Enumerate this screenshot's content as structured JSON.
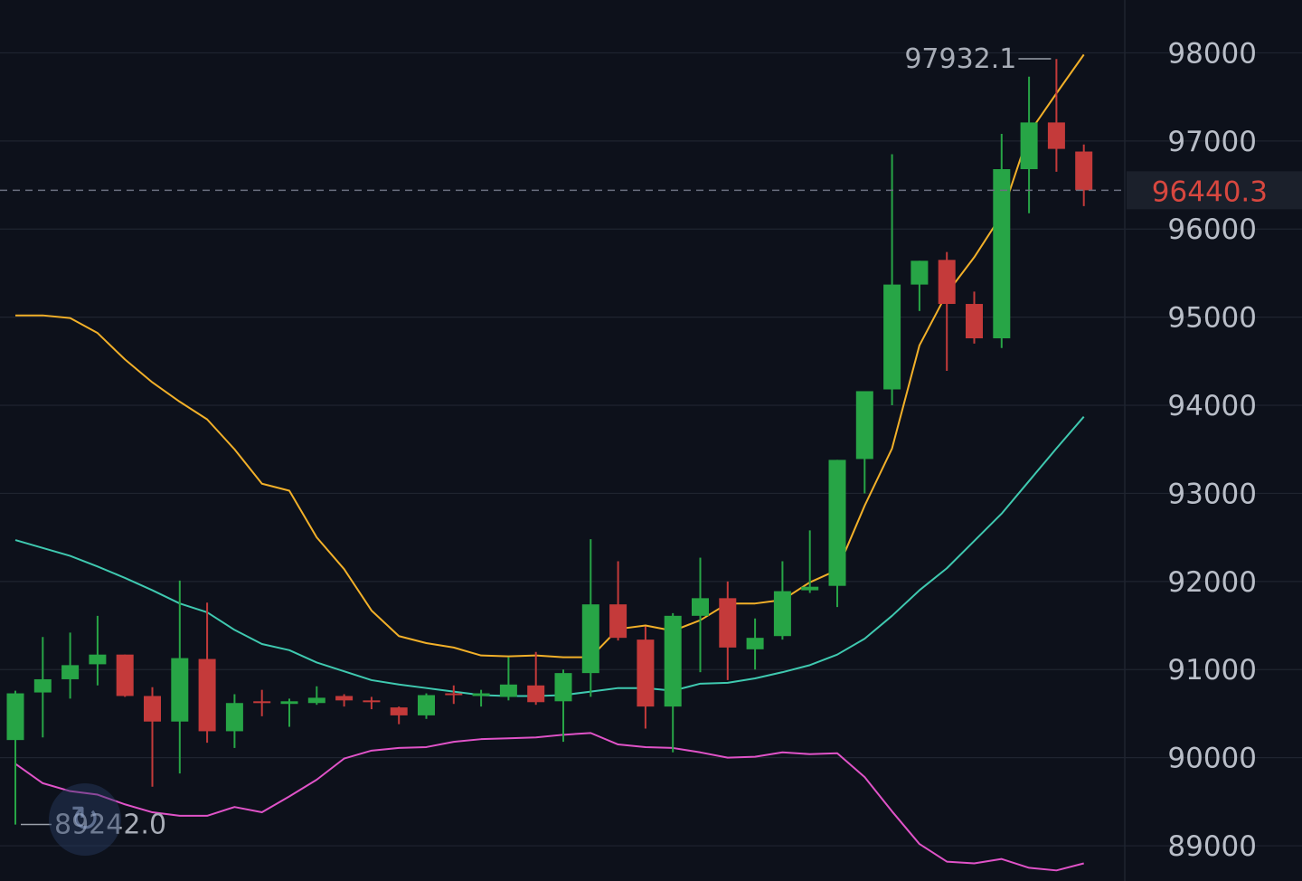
{
  "colors": {
    "background": "#0d111b",
    "grid": "#1f2430",
    "up": "#27a546",
    "down": "#c43a3a",
    "ma_short": "#f2b029",
    "ma_mid": "#3fc9b0",
    "ma_low": "#e053c8",
    "current_price": "#d8473f",
    "axis_text": "#b9bec8"
  },
  "icons": {
    "scroll_back": "rotate-arrow-icon"
  },
  "chart_data": {
    "type": "candlestick",
    "y_ticks": [
      89000,
      90000,
      91000,
      92000,
      93000,
      94000,
      95000,
      96000,
      97000,
      98000
    ],
    "y_tick_labels": [
      "89000",
      "90000",
      "91000",
      "92000",
      "93000",
      "94000",
      "95000",
      "96000",
      "97000",
      "98000"
    ],
    "ylim": [
      88600,
      98600
    ],
    "grid": true,
    "current_price": 96440.3,
    "current_price_label": "96440.3",
    "high_label": "97932.1",
    "high_value": 97932.1,
    "low_label": "89242.0",
    "low_value": 89242.0,
    "candles": [
      {
        "o": 90200,
        "c": 90730,
        "h": 90760,
        "l": 89240
      },
      {
        "o": 90740,
        "c": 90890,
        "h": 91370,
        "l": 90230
      },
      {
        "o": 90890,
        "c": 91050,
        "h": 91420,
        "l": 90670
      },
      {
        "o": 91060,
        "c": 91170,
        "h": 91610,
        "l": 90820
      },
      {
        "o": 91170,
        "c": 90700,
        "h": 91170,
        "l": 90690
      },
      {
        "o": 90700,
        "c": 90410,
        "h": 90800,
        "l": 89670
      },
      {
        "o": 90410,
        "c": 91130,
        "h": 92010,
        "l": 89820
      },
      {
        "o": 91120,
        "c": 90300,
        "h": 91760,
        "l": 90170
      },
      {
        "o": 90300,
        "c": 90620,
        "h": 90720,
        "l": 90110
      },
      {
        "o": 90640,
        "c": 90620,
        "h": 90770,
        "l": 90470
      },
      {
        "o": 90610,
        "c": 90640,
        "h": 90670,
        "l": 90350
      },
      {
        "o": 90620,
        "c": 90680,
        "h": 90810,
        "l": 90600
      },
      {
        "o": 90700,
        "c": 90650,
        "h": 90720,
        "l": 90580
      },
      {
        "o": 90650,
        "c": 90640,
        "h": 90690,
        "l": 90550
      },
      {
        "o": 90570,
        "c": 90480,
        "h": 90580,
        "l": 90380
      },
      {
        "o": 90480,
        "c": 90710,
        "h": 90730,
        "l": 90440
      },
      {
        "o": 90730,
        "c": 90710,
        "h": 90820,
        "l": 90610
      },
      {
        "o": 90700,
        "c": 90730,
        "h": 90770,
        "l": 90580
      },
      {
        "o": 90690,
        "c": 90830,
        "h": 91140,
        "l": 90650
      },
      {
        "o": 90820,
        "c": 90630,
        "h": 91200,
        "l": 90600
      },
      {
        "o": 90640,
        "c": 90960,
        "h": 91000,
        "l": 90180
      },
      {
        "o": 90960,
        "c": 91740,
        "h": 92480,
        "l": 90690
      },
      {
        "o": 91740,
        "c": 91360,
        "h": 92230,
        "l": 91330
      },
      {
        "o": 91340,
        "c": 90580,
        "h": 91490,
        "l": 90330
      },
      {
        "o": 90580,
        "c": 91610,
        "h": 91640,
        "l": 90060
      },
      {
        "o": 91610,
        "c": 91810,
        "h": 92270,
        "l": 90970
      },
      {
        "o": 91810,
        "c": 91250,
        "h": 92000,
        "l": 90880
      },
      {
        "o": 91230,
        "c": 91360,
        "h": 91580,
        "l": 91000
      },
      {
        "o": 91380,
        "c": 91890,
        "h": 92230,
        "l": 91340
      },
      {
        "o": 91900,
        "c": 91940,
        "h": 92580,
        "l": 91870
      },
      {
        "o": 91950,
        "c": 93380,
        "h": 93380,
        "l": 91710
      },
      {
        "o": 93390,
        "c": 94160,
        "h": 94160,
        "l": 93000
      },
      {
        "o": 94180,
        "c": 95370,
        "h": 96850,
        "l": 94000
      },
      {
        "o": 95370,
        "c": 95640,
        "h": 95640,
        "l": 95070
      },
      {
        "o": 95650,
        "c": 95150,
        "h": 95740,
        "l": 94390
      },
      {
        "o": 95150,
        "c": 94760,
        "h": 95290,
        "l": 94700
      },
      {
        "o": 94760,
        "c": 96680,
        "h": 97080,
        "l": 94650
      },
      {
        "o": 96680,
        "c": 97210,
        "h": 97730,
        "l": 96180
      },
      {
        "o": 97210,
        "c": 96910,
        "h": 97930,
        "l": 96650
      },
      {
        "o": 96880,
        "c": 96440,
        "h": 96960,
        "l": 96260
      }
    ],
    "ma_short": [
      95020,
      95020,
      94990,
      94820,
      94520,
      94260,
      94040,
      93840,
      93500,
      93110,
      93030,
      92500,
      92140,
      91670,
      91380,
      91300,
      91250,
      91160,
      91150,
      91160,
      91140,
      91140,
      91460,
      91500,
      91440,
      91560,
      91750,
      91750,
      91790,
      91990,
      92130,
      92860,
      93510,
      94680,
      95270,
      95680,
      96160,
      97090,
      97540,
      97980
    ],
    "ma_mid": [
      92470,
      92380,
      92290,
      92170,
      92040,
      91900,
      91750,
      91650,
      91450,
      91290,
      91220,
      91080,
      90980,
      90880,
      90830,
      90790,
      90750,
      90710,
      90700,
      90700,
      90710,
      90750,
      90790,
      90790,
      90760,
      90840,
      90850,
      90900,
      90970,
      91050,
      91170,
      91350,
      91610,
      91900,
      92150,
      92460,
      92770,
      93140,
      93510,
      93870
    ],
    "ma_low": [
      89930,
      89710,
      89620,
      89580,
      89470,
      89380,
      89340,
      89340,
      89440,
      89380,
      89560,
      89750,
      89990,
      90080,
      90110,
      90120,
      90180,
      90210,
      90220,
      90230,
      90260,
      90280,
      90150,
      90120,
      90110,
      90060,
      90000,
      90010,
      90060,
      90040,
      90050,
      89780,
      89390,
      89020,
      88820,
      88800,
      88850,
      88750,
      88720,
      88800
    ]
  }
}
